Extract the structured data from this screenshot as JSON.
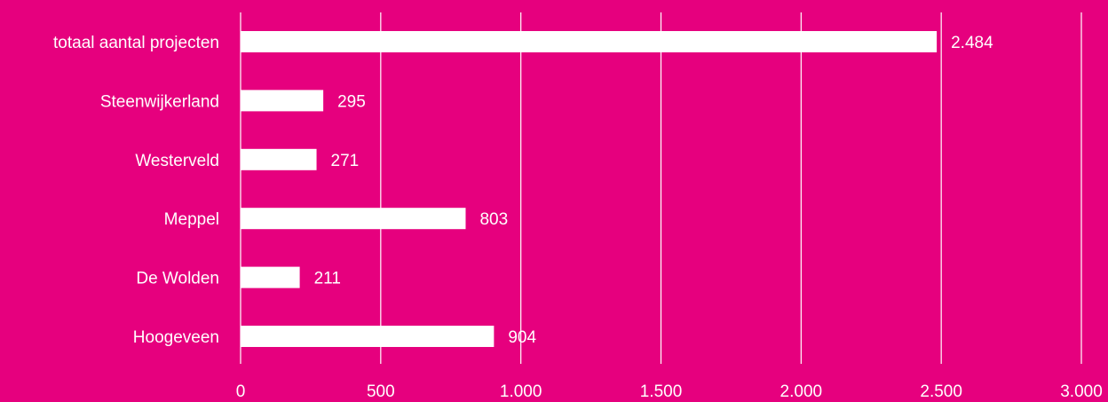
{
  "chart_data": {
    "type": "bar",
    "orientation": "horizontal",
    "title": "",
    "xlabel": "",
    "ylabel": "",
    "categories": [
      "totaal aantal projecten",
      "Steenwijkerland",
      "Westerveld",
      "Meppel",
      "De Wolden",
      "Hoogeveen"
    ],
    "values": [
      2484,
      295,
      271,
      803,
      211,
      904
    ],
    "value_labels": [
      "2.484",
      "295",
      "271",
      "803",
      "211",
      "904"
    ],
    "xlim": [
      0,
      3000
    ],
    "x_ticks": [
      0,
      500,
      1000,
      1500,
      2000,
      2500,
      3000
    ],
    "x_tick_labels": [
      "0",
      "500",
      "1.000",
      "1.500",
      "2.000",
      "2.500",
      "3.000"
    ],
    "grid": "vertical",
    "legend": "none",
    "colors": {
      "background": "#e6007e",
      "bar": "#ffffff",
      "gridline": "#ffffff",
      "text": "#ffffff"
    }
  }
}
